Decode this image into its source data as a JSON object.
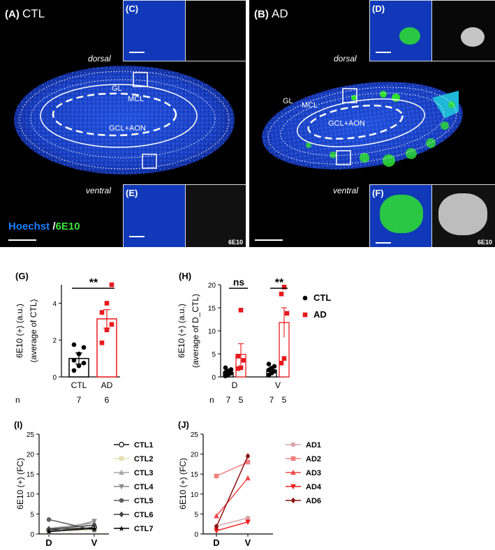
{
  "micrographs": {
    "ctl": {
      "letter": "(A)",
      "condition": "CTL",
      "dorsal": "dorsal",
      "ventral": "ventral",
      "layers": {
        "gl": "GL",
        "mcl": "MCL",
        "gcl": "GCL+AON"
      },
      "stain_legend": {
        "hoechst": "Hoechst",
        "slash": "/",
        "marker": "6E10"
      },
      "inset_dorsal": {
        "letter": "(C)"
      },
      "inset_ventral": {
        "letter": "(E)",
        "marker_tag": "6E10"
      }
    },
    "ad": {
      "letter": "(B)",
      "condition": "AD",
      "dorsal": "dorsal",
      "ventral": "ventral",
      "layers": {
        "gl": "GL",
        "mcl": "MCL",
        "gcl": "GCL+AON"
      },
      "inset_dorsal": {
        "letter": "(D)"
      },
      "inset_ventral": {
        "letter": "(F)",
        "marker_tag": "6E10"
      }
    },
    "colors": {
      "hoechst": "#1a4fd6",
      "marker": "#2ee02e",
      "ad_red": "#e8191c"
    }
  },
  "chart_data": [
    {
      "panel": "(G)",
      "type": "bar",
      "ylabel_line1": "6E10 (+) (a.u.)",
      "ylabel_line2": "(average of CTL)",
      "categories": [
        "CTL",
        "AD"
      ],
      "values": [
        1.0,
        3.15
      ],
      "errors": [
        0.3,
        0.5
      ],
      "points": [
        [
          0.35,
          0.6,
          0.75,
          0.9,
          1.25,
          1.6,
          1.75
        ],
        [
          1.85,
          2.55,
          2.85,
          3.5,
          4.0,
          5.0
        ]
      ],
      "ylim": [
        0,
        5
      ],
      "yticks": [
        "0",
        "2",
        "4"
      ],
      "ytick_values": [
        0,
        2,
        4
      ],
      "significance": "**",
      "n_label": "n",
      "n_values": [
        "7",
        "6"
      ],
      "colors": [
        "#000000",
        "#e8191c"
      ]
    },
    {
      "panel": "(H)",
      "type": "bar",
      "ylabel_line1": "6E10 (+) (a.u.)",
      "ylabel_line2": "(average of D_CTL)",
      "categories": [
        "D",
        "V"
      ],
      "series": [
        {
          "name": "CTL",
          "values": [
            1.0,
            1.5
          ],
          "errors": [
            0.5,
            0.6
          ],
          "points": [
            [
              0.2,
              0.5,
              0.8,
              1.0,
              1.3,
              1.6,
              2.0
            ],
            [
              0.4,
              0.8,
              1.2,
              1.5,
              1.9,
              2.3,
              2.8
            ]
          ]
        },
        {
          "name": "AD",
          "values": [
            4.9,
            11.8
          ],
          "errors": [
            2.3,
            3.2
          ],
          "points": [
            [
              1.8,
              2.0,
              3.6,
              4.5,
              14.5
            ],
            [
              3.0,
              4.0,
              13.8,
              18.0,
              19.5
            ]
          ]
        }
      ],
      "ylim": [
        0,
        20
      ],
      "yticks": [
        "0",
        "5",
        "10",
        "15",
        "20"
      ],
      "ytick_values": [
        0,
        5,
        10,
        15,
        20
      ],
      "significance": [
        "ns",
        "**"
      ],
      "n_label": "n",
      "n_values": [
        [
          "7",
          "5"
        ],
        [
          "7",
          "5"
        ]
      ],
      "legend": [
        "CTL",
        "AD"
      ],
      "legend_colors": [
        "#000000",
        "#e8191c"
      ]
    },
    {
      "panel": "(I)",
      "type": "line",
      "ylabel": "6E10 (+) (FC)",
      "x": [
        "D",
        "V"
      ],
      "ylim": [
        0,
        25
      ],
      "yticks": [
        "0",
        "5",
        "10",
        "15",
        "20",
        "25"
      ],
      "ytick_values": [
        0,
        5,
        10,
        15,
        20,
        25
      ],
      "series": [
        {
          "name": "CTL1",
          "values": [
            1.0,
            1.6
          ],
          "color": "#1a1a1a",
          "marker": "circle-open"
        },
        {
          "name": "CTL2",
          "values": [
            0.8,
            1.0
          ],
          "color": "#e6dfb2",
          "marker": "square"
        },
        {
          "name": "CTL3",
          "values": [
            1.4,
            2.7
          ],
          "color": "#a6a6a6",
          "marker": "triangle-up"
        },
        {
          "name": "CTL4",
          "values": [
            0.4,
            3.2
          ],
          "color": "#8c8c8c",
          "marker": "triangle-down"
        },
        {
          "name": "CTL5",
          "values": [
            3.6,
            1.0
          ],
          "color": "#606060",
          "marker": "circle"
        },
        {
          "name": "CTL6",
          "values": [
            1.2,
            2.2
          ],
          "color": "#404040",
          "marker": "diamond"
        },
        {
          "name": "CTL7",
          "values": [
            0.6,
            1.4
          ],
          "color": "#000000",
          "marker": "star"
        }
      ]
    },
    {
      "panel": "(J)",
      "type": "line",
      "ylabel": "6E10 (+) (FC)",
      "x": [
        "D",
        "V"
      ],
      "ylim": [
        0,
        25
      ],
      "yticks": [
        "0",
        "5",
        "10",
        "15",
        "20",
        "25"
      ],
      "ytick_values": [
        0,
        5,
        10,
        15,
        20,
        25
      ],
      "series": [
        {
          "name": "AD1",
          "values": [
            2.0,
            4.0
          ],
          "color": "#d9a3a8",
          "marker": "circle"
        },
        {
          "name": "AD2",
          "values": [
            14.5,
            18.0
          ],
          "color": "#f08080",
          "marker": "square"
        },
        {
          "name": "AD3",
          "values": [
            4.5,
            14.0
          ],
          "color": "#f04848",
          "marker": "triangle-up"
        },
        {
          "name": "AD4",
          "values": [
            0.8,
            3.0
          ],
          "color": "#ee1c1c",
          "marker": "triangle-down"
        },
        {
          "name": "AD6",
          "values": [
            1.8,
            19.5
          ],
          "color": "#8b1010",
          "marker": "diamond"
        }
      ]
    }
  ]
}
